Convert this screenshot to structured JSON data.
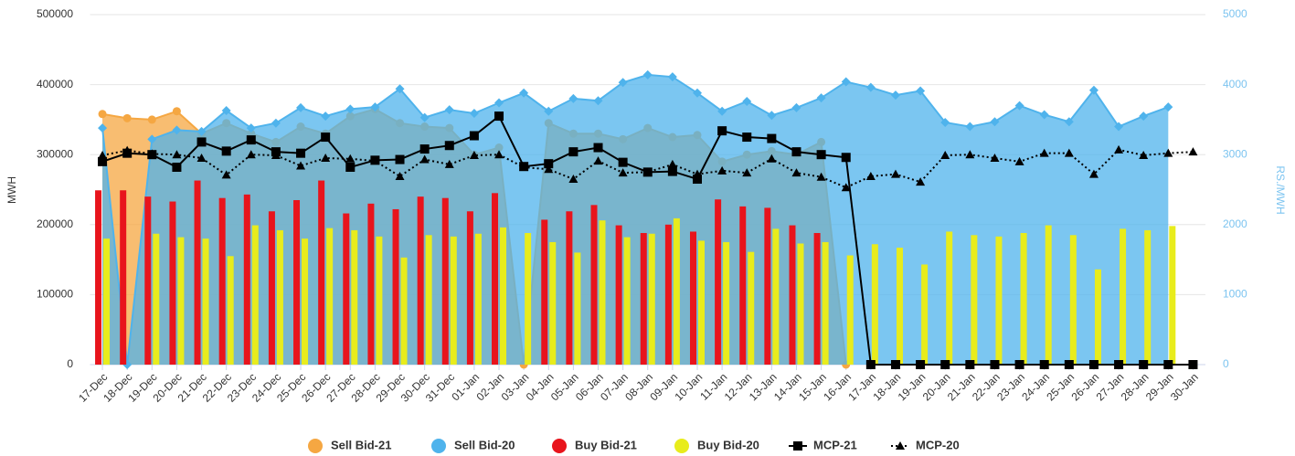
{
  "chart_data": {
    "type": "combo",
    "y_label": "MWH",
    "y2_label": "RS./MWH",
    "categories": [
      "17-Dec",
      "18-Dec",
      "19-Dec",
      "20-Dec",
      "21-Dec",
      "22-Dec",
      "23-Dec",
      "24-Dec",
      "25-Dec",
      "26-Dec",
      "27-Dec",
      "28-Dec",
      "29-Dec",
      "30-Dec",
      "31-Dec",
      "01-Jan",
      "02-Jan",
      "03-Jan",
      "04-Jan",
      "05-Jan",
      "06-Jan",
      "07-Jan",
      "08-Jan",
      "09-Jan",
      "10-Jan",
      "11-Jan",
      "12-Jan",
      "13-Jan",
      "14-Jan",
      "15-Jan",
      "16-Jan",
      "17-Jan",
      "18-Jan",
      "19-Jan",
      "20-Jan",
      "21-Jan",
      "22-Jan",
      "23-Jan",
      "24-Jan",
      "25-Jan",
      "26-Jan",
      "27-Jan",
      "28-Jan",
      "29-Jan",
      "30-Jan"
    ],
    "ylim": [
      0,
      500000
    ],
    "yticks": [
      0,
      100000,
      200000,
      300000,
      400000,
      500000
    ],
    "y2lim": [
      0,
      5000
    ],
    "y2ticks": [
      0,
      1000,
      2000,
      3000,
      4000,
      5000
    ],
    "grid": true,
    "legend": "bottom",
    "series": [
      {
        "name": "Sell Bid-21",
        "type": "area",
        "color": "#f5a742",
        "values": [
          358000,
          352000,
          350000,
          362000,
          330000,
          345000,
          330000,
          318000,
          340000,
          330000,
          355000,
          365000,
          345000,
          340000,
          338000,
          300000,
          310000,
          0,
          345000,
          330000,
          330000,
          322000,
          338000,
          325000,
          328000,
          290000,
          300000,
          305000,
          300000,
          318000,
          0,
          null,
          null,
          null,
          null,
          null,
          null,
          null,
          null,
          null,
          null,
          null,
          null,
          null,
          null
        ]
      },
      {
        "name": "Sell Bid-20",
        "type": "area",
        "color": "#4fb3ec",
        "values": [
          338000,
          0,
          322000,
          335000,
          333000,
          363000,
          338000,
          345000,
          367000,
          355000,
          365000,
          368000,
          394000,
          353000,
          364000,
          359000,
          374000,
          388000,
          362000,
          380000,
          377000,
          403000,
          414000,
          411000,
          388000,
          362000,
          376000,
          356000,
          367000,
          381000,
          404000,
          396000,
          385000,
          391000,
          346000,
          340000,
          347000,
          370000,
          357000,
          347000,
          392000,
          340000,
          355000,
          368000,
          null
        ]
      },
      {
        "name": "Buy Bid-21",
        "type": "bar",
        "color": "#e8141c",
        "values": [
          249000,
          249000,
          240000,
          233000,
          263000,
          238000,
          243000,
          219000,
          235000,
          263000,
          216000,
          230000,
          222000,
          240000,
          238000,
          219000,
          245000,
          null,
          207000,
          219000,
          228000,
          199000,
          188000,
          200000,
          190000,
          236000,
          226000,
          224000,
          199000,
          188000,
          null,
          null,
          null,
          null,
          null,
          null,
          null,
          null,
          null,
          null,
          null,
          null,
          null,
          null,
          null
        ]
      },
      {
        "name": "Buy Bid-20",
        "type": "bar",
        "color": "#e8ec1c",
        "values": [
          180000,
          null,
          187000,
          182000,
          180000,
          155000,
          199000,
          192000,
          180000,
          195000,
          192000,
          183000,
          153000,
          185000,
          183000,
          187000,
          196000,
          188000,
          175000,
          160000,
          206000,
          182000,
          187000,
          209000,
          177000,
          175000,
          161000,
          194000,
          173000,
          175000,
          156000,
          172000,
          167000,
          143000,
          190000,
          185000,
          183000,
          188000,
          199000,
          185000,
          136000,
          194000,
          192000,
          198000,
          null
        ]
      },
      {
        "name": "MCP-21",
        "type": "line",
        "axis": "y2",
        "color": "#000000",
        "dash": "solid",
        "marker": "square",
        "values": [
          2900,
          3020,
          3000,
          2820,
          3180,
          3050,
          3210,
          3040,
          3020,
          3250,
          2820,
          2920,
          2930,
          3080,
          3130,
          3270,
          3550,
          2830,
          2870,
          3040,
          3100,
          2890,
          2750,
          2760,
          2650,
          3340,
          3250,
          3230,
          3040,
          3000,
          2960,
          0,
          0,
          0,
          0,
          0,
          0,
          0,
          0,
          0,
          0,
          0,
          0,
          0,
          0
        ]
      },
      {
        "name": "MCP-20",
        "type": "line",
        "axis": "y2",
        "color": "#000000",
        "dash": "dotted",
        "marker": "triangle",
        "values": [
          2990,
          3060,
          3010,
          3000,
          2950,
          2710,
          3000,
          2990,
          2840,
          2950,
          2940,
          2910,
          2690,
          2930,
          2860,
          2990,
          3000,
          2820,
          2790,
          2650,
          2910,
          2740,
          2750,
          2860,
          2720,
          2770,
          2740,
          2940,
          2740,
          2680,
          2530,
          2690,
          2720,
          2610,
          2990,
          3000,
          2950,
          2900,
          3020,
          3020,
          2720,
          3070,
          2990,
          3020,
          3040
        ]
      }
    ]
  }
}
